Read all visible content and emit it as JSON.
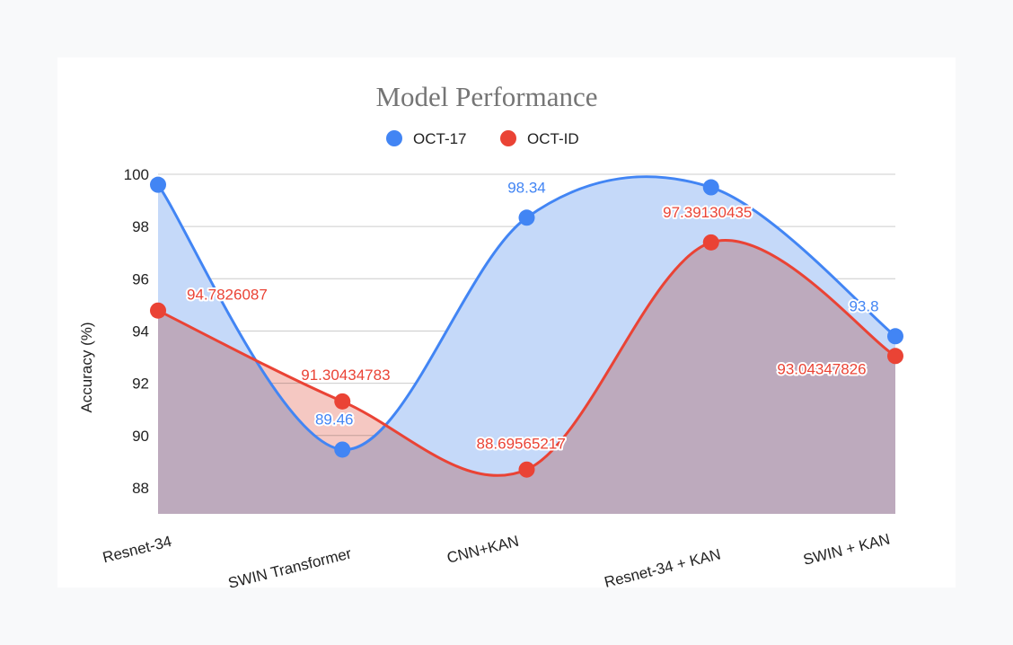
{
  "chart_data": {
    "type": "area",
    "title": "Model Performance",
    "xlabel": "",
    "ylabel": "Accuracy (%)",
    "categories": [
      "Resnet-34",
      "SWIN Transformer",
      "CNN+KAN",
      "Resnet-34 + KAN",
      "SWIN + KAN"
    ],
    "ylim": [
      87,
      100
    ],
    "yticks": [
      "100",
      "98",
      "96",
      "94",
      "92",
      "90",
      "88"
    ],
    "grid": true,
    "legend_position": "top",
    "series": [
      {
        "name": "OCT-17",
        "color": "#4285f4",
        "fill": "#c5d9f9",
        "values": [
          99.6,
          89.46,
          98.34,
          99.5,
          93.8
        ],
        "labels": [
          "",
          "89.46",
          "98.34",
          "",
          "93.8"
        ]
      },
      {
        "name": "OCT-ID",
        "color": "#ea4335",
        "fill": "#f1b5ad",
        "values": [
          94.7826087,
          91.30434783,
          88.69565217,
          97.39130435,
          93.04347826
        ],
        "labels": [
          "94.7826087",
          "91.30434783",
          "88.69565217",
          "97.39130435",
          "93.04347826"
        ]
      }
    ]
  }
}
